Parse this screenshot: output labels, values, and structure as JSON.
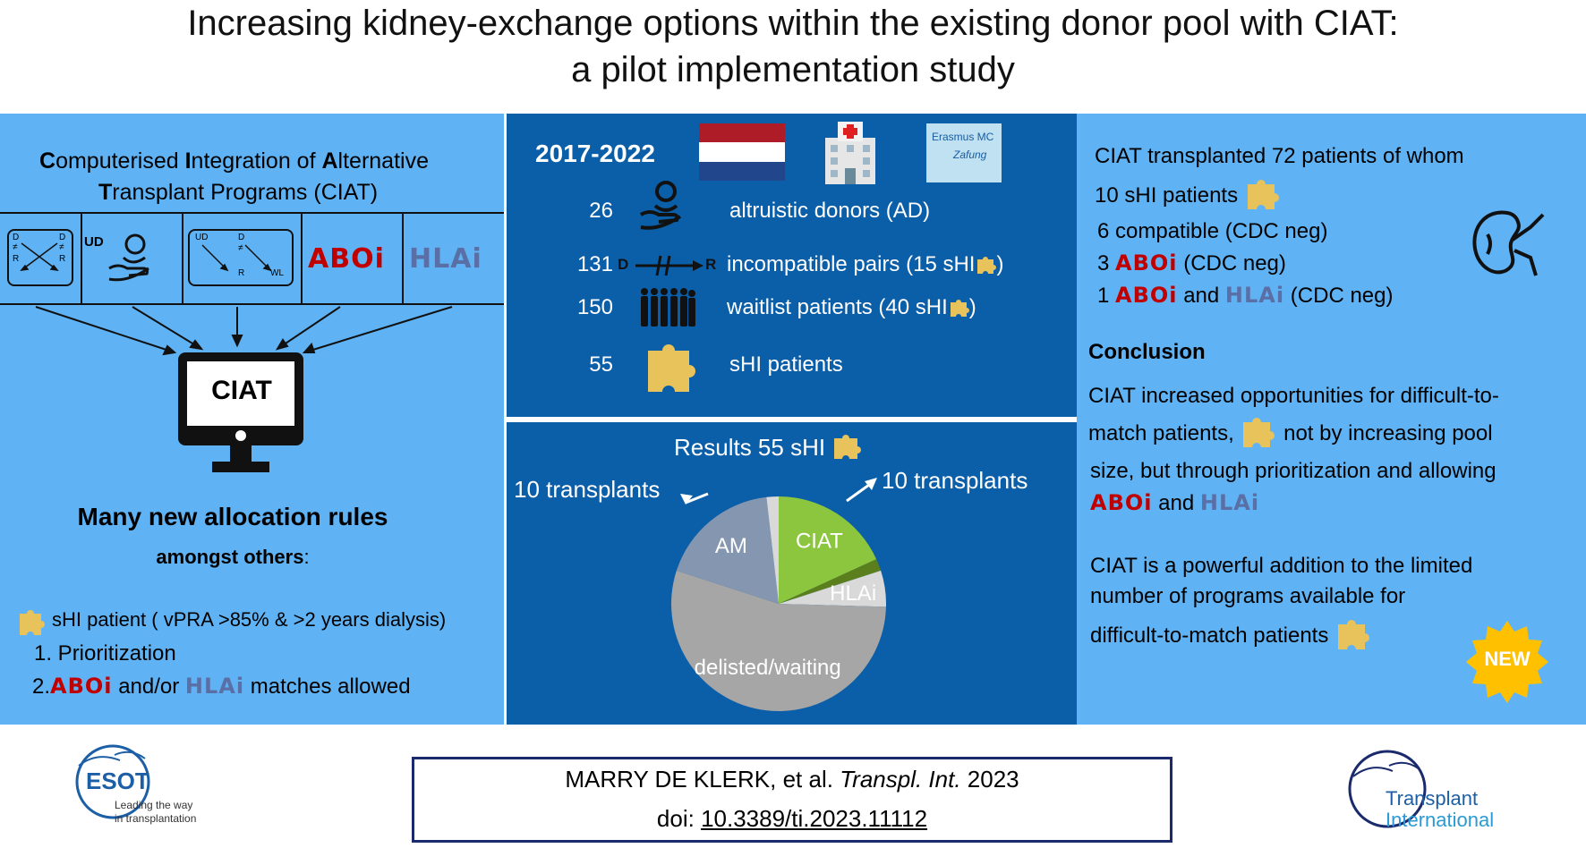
{
  "title": {
    "line1": "Increasing kidney-exchange options within the existing donor pool with CIAT:",
    "line2": "a pilot implementation study"
  },
  "left": {
    "heading": {
      "p1_cap": "C",
      "p1_rest": "omputerised ",
      "p2_cap": "I",
      "p2_rest": "ntegration of ",
      "p3_cap": "A",
      "p3_rest": "lternative",
      "p4_cap": "T",
      "p4_rest": "ransplant Programs (CIAT)"
    },
    "programs": {
      "d_label": "D",
      "r_label": "R",
      "neq": "≠",
      "ud_label": "UD",
      "wl_label": "WL",
      "abo": "ABOi",
      "hla": "HLAi"
    },
    "monitor_label": "CIAT",
    "rules_heading": "Many new allocation rules",
    "rules_sub": "amongst others",
    "colon": ":",
    "shi_def": "sHI patient ( vPRA >85% & >2 years dialysis)",
    "item1": "1. Prioritization",
    "item2_num": "2.",
    "item2_abo": "ABOi",
    "item2_mid": "and/or",
    "item2_hla": "HLAi",
    "item2_end": "matches allowed"
  },
  "middle": {
    "period": "2017-2022",
    "hospital_logo": "Erasmus MC",
    "hospital_logo_sub": "Zafung",
    "rows": [
      {
        "count": "26",
        "label": "altruistic donors (AD)"
      },
      {
        "count": "131",
        "label": "incompatible pairs (15 sHI",
        "end": ")"
      },
      {
        "count": "150",
        "label": "waitlist patients (40 sHI",
        "end": ")"
      },
      {
        "count": "55",
        "label": "sHI patients"
      }
    ],
    "pair_d": "D",
    "pair_r": "R",
    "results_title": "Results 55 sHI",
    "left_callout": "10 transplants",
    "right_callout": "10 transplants"
  },
  "chart_data": {
    "type": "pie",
    "title": "Results 55 sHI",
    "categories": [
      "CIAT",
      "ABOi (dark green)",
      "HLAi",
      "delisted/waiting",
      "AM",
      "other (light)"
    ],
    "values": [
      10,
      1,
      3,
      30,
      10,
      1
    ],
    "labels": [
      "CIAT",
      "",
      "HLAi",
      "delisted/waiting",
      "AM",
      ""
    ],
    "colors": [
      "#8cc63f",
      "#5a7f1c",
      "#d9d9d9",
      "#a6a6a6",
      "#8496b0",
      "#d9d9d9"
    ]
  },
  "right": {
    "line1": "CIAT transplanted 72 patients of whom",
    "line2": "10 sHI patients",
    "line3": "6 compatible (CDC neg)",
    "line4_num": "3",
    "line4_abo": "ABOi",
    "line4_end": "(CDC neg)",
    "line5_num": "1",
    "line5_abo": "ABOi",
    "line5_mid": "and",
    "line5_hla": "HLAi",
    "line5_end": "(CDC neg)",
    "conclusion_heading": "Conclusion",
    "c1": "CIAT increased opportunities for difficult-to-",
    "c2a": "match patients,",
    "c2b": "not by increasing pool",
    "c3": "size, but through prioritization and allowing",
    "c4_abo": "ABOi",
    "c4_mid": "and",
    "c4_hla": "HLAi",
    "p1": "CIAT is a powerful addition to the limited",
    "p2": "number of programs available for",
    "p3": "difficult-to-match patients",
    "new_badge": "NEW"
  },
  "footer": {
    "esot_name": "ESOT",
    "esot_tag1": "Leading the way",
    "esot_tag2": "in transplantation",
    "citation_authors": "MARRY DE KLERK, et al.",
    "citation_journal": "Transpl. Int.",
    "citation_year": "2023",
    "doi_label": "doi:",
    "doi_value": "10.3389/ti.2023.11112",
    "ti_line1": "Transplant",
    "ti_line2": "International"
  }
}
